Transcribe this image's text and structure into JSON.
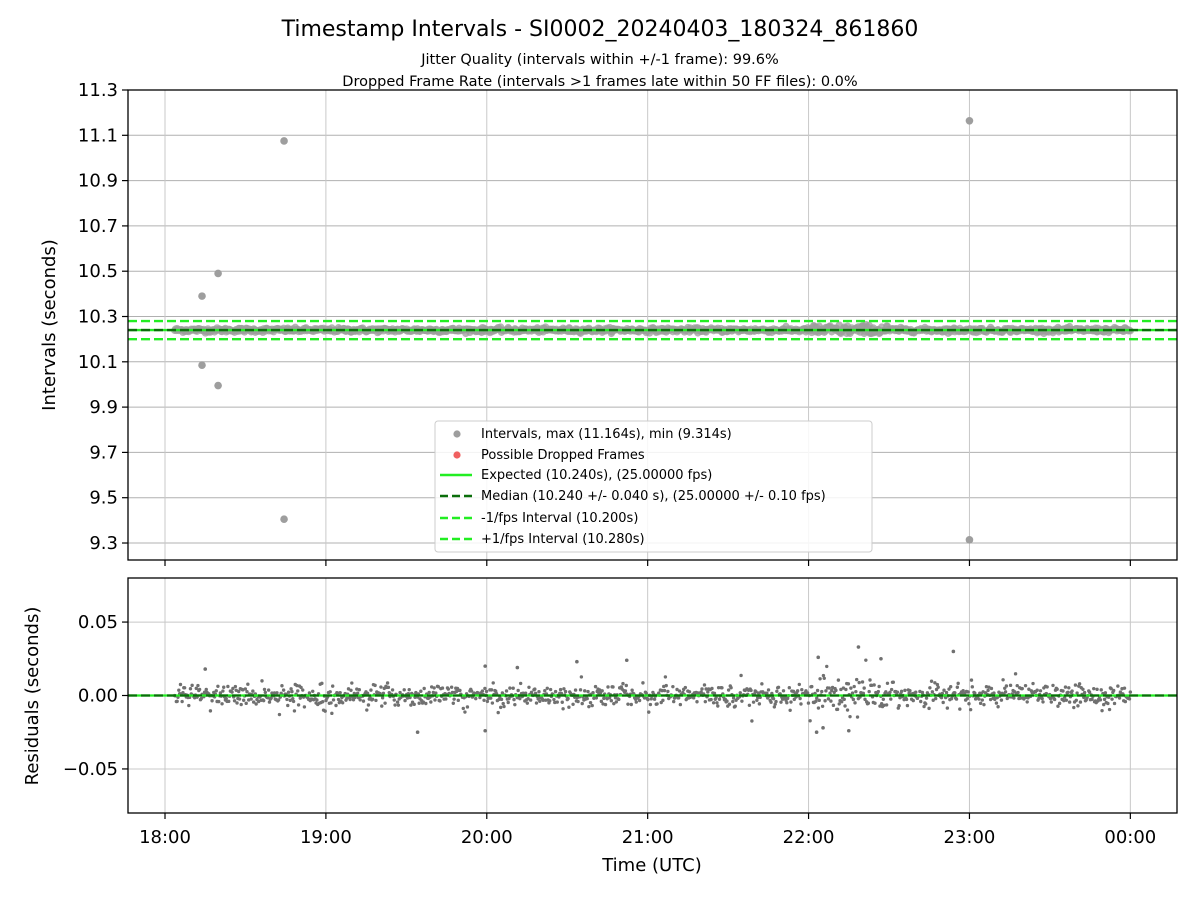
{
  "chart_data": [
    {
      "type": "scatter",
      "title": "Timestamp Intervals - SI0002_20240403_180324_861860",
      "subtitle_lines": [
        "Jitter Quality (intervals within +/-1 frame): 99.6%",
        "Dropped Frame Rate (intervals >1 frames late within 50 FF files): 0.0%"
      ],
      "ylabel": "Intervals (seconds)",
      "xlabel": "",
      "x_unit": "hours since 18:00 UTC",
      "xlim": [
        -0.23,
        6.29
      ],
      "ylim": [
        9.225,
        11.3
      ],
      "yticks": [
        9.3,
        9.5,
        9.7,
        9.9,
        10.1,
        10.3,
        10.5,
        10.7,
        10.9,
        11.1,
        11.3
      ],
      "ytick_labels": [
        "9.3",
        "9.5",
        "9.7",
        "9.9",
        "10.1",
        "10.3",
        "10.5",
        "10.7",
        "10.9",
        "11.1",
        "11.3"
      ],
      "grid": true,
      "legend_position": "lower-center",
      "series": [
        {
          "name": "Intervals, max (11.164s), min (9.314s)",
          "kind": "scatter",
          "color": "#9e9e9e",
          "band_x_range": [
            0.06,
            6.0
          ],
          "band_y_range": [
            10.225,
            10.265
          ],
          "outliers": [
            {
              "x": 0.23,
              "y": 10.39
            },
            {
              "x": 0.23,
              "y": 10.085
            },
            {
              "x": 0.33,
              "y": 10.49
            },
            {
              "x": 0.33,
              "y": 9.995
            },
            {
              "x": 0.74,
              "y": 11.075
            },
            {
              "x": 0.74,
              "y": 9.405
            },
            {
              "x": 5.0,
              "y": 11.164
            },
            {
              "x": 5.0,
              "y": 9.314
            }
          ]
        },
        {
          "name": "Possible Dropped Frames",
          "kind": "scatter",
          "color": "#f06060",
          "points": []
        },
        {
          "name": "Expected (10.240s), (25.00000 fps)",
          "kind": "hline",
          "y": 10.24,
          "color": "#22ee22",
          "style": "solid"
        },
        {
          "name": "Median (10.240 +/- 0.040 s), (25.00000 +/- 0.10 fps)",
          "kind": "hline",
          "y": 10.24,
          "color": "#0a6e0a",
          "style": "dashed"
        },
        {
          "name": "-1/fps Interval (10.200s)",
          "kind": "hline",
          "y": 10.2,
          "color": "#22ee22",
          "style": "dashed"
        },
        {
          "name": "+1/fps Interval (10.280s)",
          "kind": "hline",
          "y": 10.28,
          "color": "#22ee22",
          "style": "dashed"
        }
      ]
    },
    {
      "type": "scatter",
      "title": "",
      "ylabel": "Residuals (seconds)",
      "xlabel": "Time (UTC)",
      "x_unit": "hours since 18:00 UTC",
      "xlim": [
        -0.23,
        6.29
      ],
      "ylim": [
        -0.08,
        0.08
      ],
      "yticks": [
        0.05,
        0.0,
        -0.05
      ],
      "ytick_labels": [
        "0.05",
        "0.00",
        "−0.05"
      ],
      "xticks": [
        0,
        1,
        2,
        3,
        4,
        5,
        6
      ],
      "xtick_labels": [
        "18:00",
        "19:00",
        "20:00",
        "21:00",
        "22:00",
        "23:00",
        "00:00"
      ],
      "grid": true,
      "series": [
        {
          "name": "Residuals",
          "kind": "scatter",
          "color": "#707070",
          "x_range": [
            0.06,
            6.0
          ],
          "typical_spread": 0.006,
          "high_jitter_window": [
            4.0,
            4.5
          ],
          "high_jitter_spread": 0.012,
          "notable_points": [
            {
              "x": 0.25,
              "y": 0.018
            },
            {
              "x": 1.57,
              "y": -0.025
            },
            {
              "x": 1.99,
              "y": 0.02
            },
            {
              "x": 1.99,
              "y": -0.024
            },
            {
              "x": 2.19,
              "y": 0.019
            },
            {
              "x": 2.56,
              "y": 0.023
            },
            {
              "x": 2.87,
              "y": 0.024
            },
            {
              "x": 4.06,
              "y": 0.026
            },
            {
              "x": 4.31,
              "y": 0.033
            },
            {
              "x": 4.09,
              "y": -0.022
            },
            {
              "x": 4.05,
              "y": -0.025
            },
            {
              "x": 4.25,
              "y": -0.024
            },
            {
              "x": 4.45,
              "y": 0.025
            },
            {
              "x": 4.9,
              "y": 0.03
            }
          ]
        },
        {
          "name": "Zero line",
          "kind": "hline",
          "y": 0.0,
          "color": "#22ee22",
          "style": "solid"
        },
        {
          "name": "Zero line median",
          "kind": "hline",
          "y": 0.0,
          "color": "#0a6e0a",
          "style": "dashed"
        }
      ]
    }
  ]
}
